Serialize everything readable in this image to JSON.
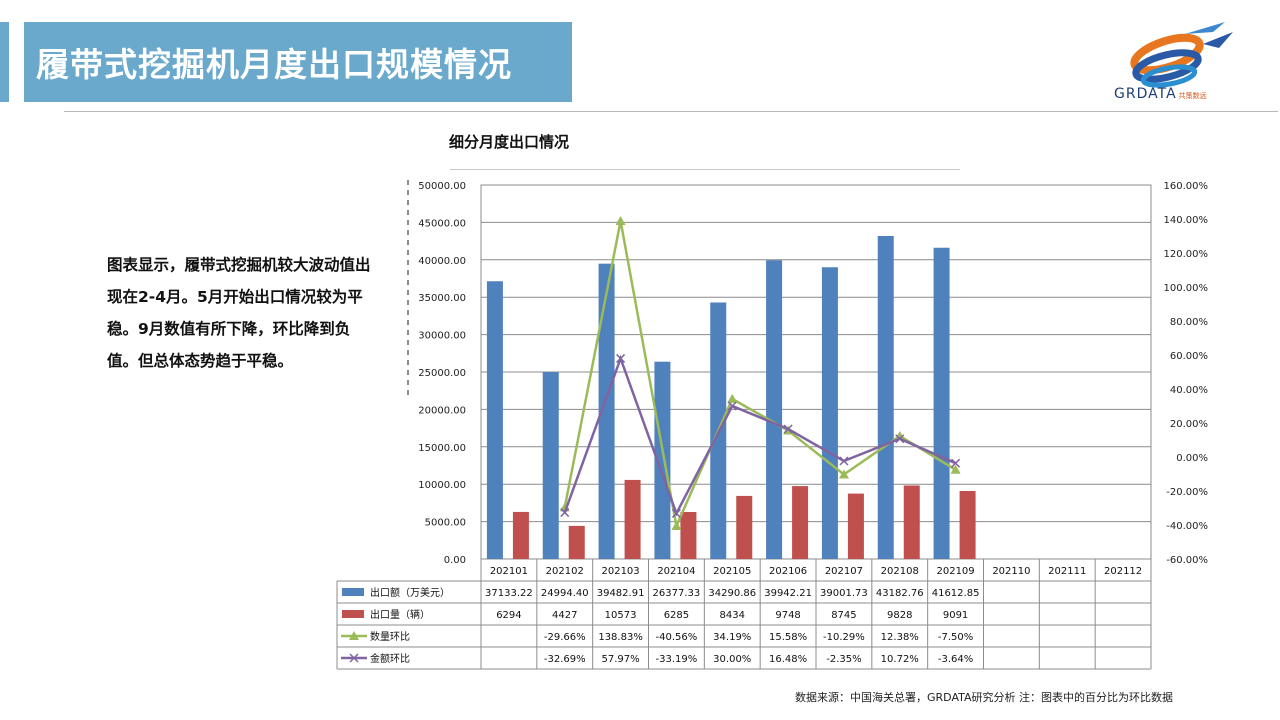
{
  "header": {
    "title": "履带式挖掘机月度出口规模情况"
  },
  "logo": {
    "text": "GRDATA",
    "subtext": "共策数远"
  },
  "description": "图表显示，履带式挖掘机较大波动值出现在2-4月。5月开始出口情况较为平稳。9月数值有所下降，环比降到负值。但总体态势趋于平稳。",
  "footer": {
    "source": "数据来源：中国海关总署，GRDATA研究分析  注：图表中的百分比为环比数据"
  },
  "colors": {
    "title_band": "#6aa8cc",
    "export_value": "#4f81bd",
    "export_volume": "#c0504d",
    "qty_mom": "#9bbb59",
    "amount_mom": "#8064a2"
  },
  "chart_data": {
    "type": "bar",
    "title": "细分月度出口情况",
    "categories": [
      "202101",
      "202102",
      "202103",
      "202104",
      "202105",
      "202106",
      "202107",
      "202108",
      "202109",
      "202110",
      "202111",
      "202112"
    ],
    "y_left": {
      "lim": [
        0,
        50000
      ],
      "ticks": [
        "0.00",
        "5000.00",
        "10000.00",
        "15000.00",
        "20000.00",
        "25000.00",
        "30000.00",
        "35000.00",
        "40000.00",
        "45000.00",
        "50000.00"
      ]
    },
    "y_right": {
      "lim": [
        -60,
        160
      ],
      "ticks": [
        "-60.00%",
        "-40.00%",
        "-20.00%",
        "0.00%",
        "20.00%",
        "40.00%",
        "60.00%",
        "80.00%",
        "100.00%",
        "120.00%",
        "140.00%",
        "160.00%"
      ]
    },
    "grid": true,
    "legend": "data-table",
    "series": [
      {
        "name": "出口额（万美元）",
        "type": "bar",
        "axis": "left",
        "values": [
          37133.22,
          24994.4,
          39482.91,
          26377.33,
          34290.86,
          39942.21,
          39001.73,
          43182.76,
          41612.85,
          null,
          null,
          null
        ],
        "labels": [
          "37133.22",
          "24994.40",
          "39482.91",
          "26377.33",
          "34290.86",
          "39942.21",
          "39001.73",
          "43182.76",
          "41612.85",
          "",
          "",
          ""
        ]
      },
      {
        "name": "出口量（辆）",
        "type": "bar",
        "axis": "left",
        "values": [
          6294,
          4427,
          10573,
          6285,
          8434,
          9748,
          8745,
          9828,
          9091,
          null,
          null,
          null
        ],
        "labels": [
          "6294",
          "4427",
          "10573",
          "6285",
          "8434",
          "9748",
          "8745",
          "9828",
          "9091",
          "",
          "",
          ""
        ]
      },
      {
        "name": "数量环比",
        "type": "line",
        "marker": "triangle",
        "axis": "right",
        "values": [
          null,
          -29.66,
          138.83,
          -40.56,
          34.19,
          15.58,
          -10.29,
          12.38,
          -7.5,
          null,
          null,
          null
        ],
        "labels": [
          "",
          "-29.66%",
          "138.83%",
          "-40.56%",
          "34.19%",
          "15.58%",
          "-10.29%",
          "12.38%",
          "-7.50%",
          "",
          "",
          ""
        ]
      },
      {
        "name": "金额环比",
        "type": "line",
        "marker": "x",
        "axis": "right",
        "values": [
          null,
          -32.69,
          57.97,
          -33.19,
          30.0,
          16.48,
          -2.35,
          10.72,
          -3.64,
          null,
          null,
          null
        ],
        "labels": [
          "",
          "-32.69%",
          "57.97%",
          "-33.19%",
          "30.00%",
          "16.48%",
          "-2.35%",
          "10.72%",
          "-3.64%",
          "",
          "",
          ""
        ]
      }
    ]
  }
}
